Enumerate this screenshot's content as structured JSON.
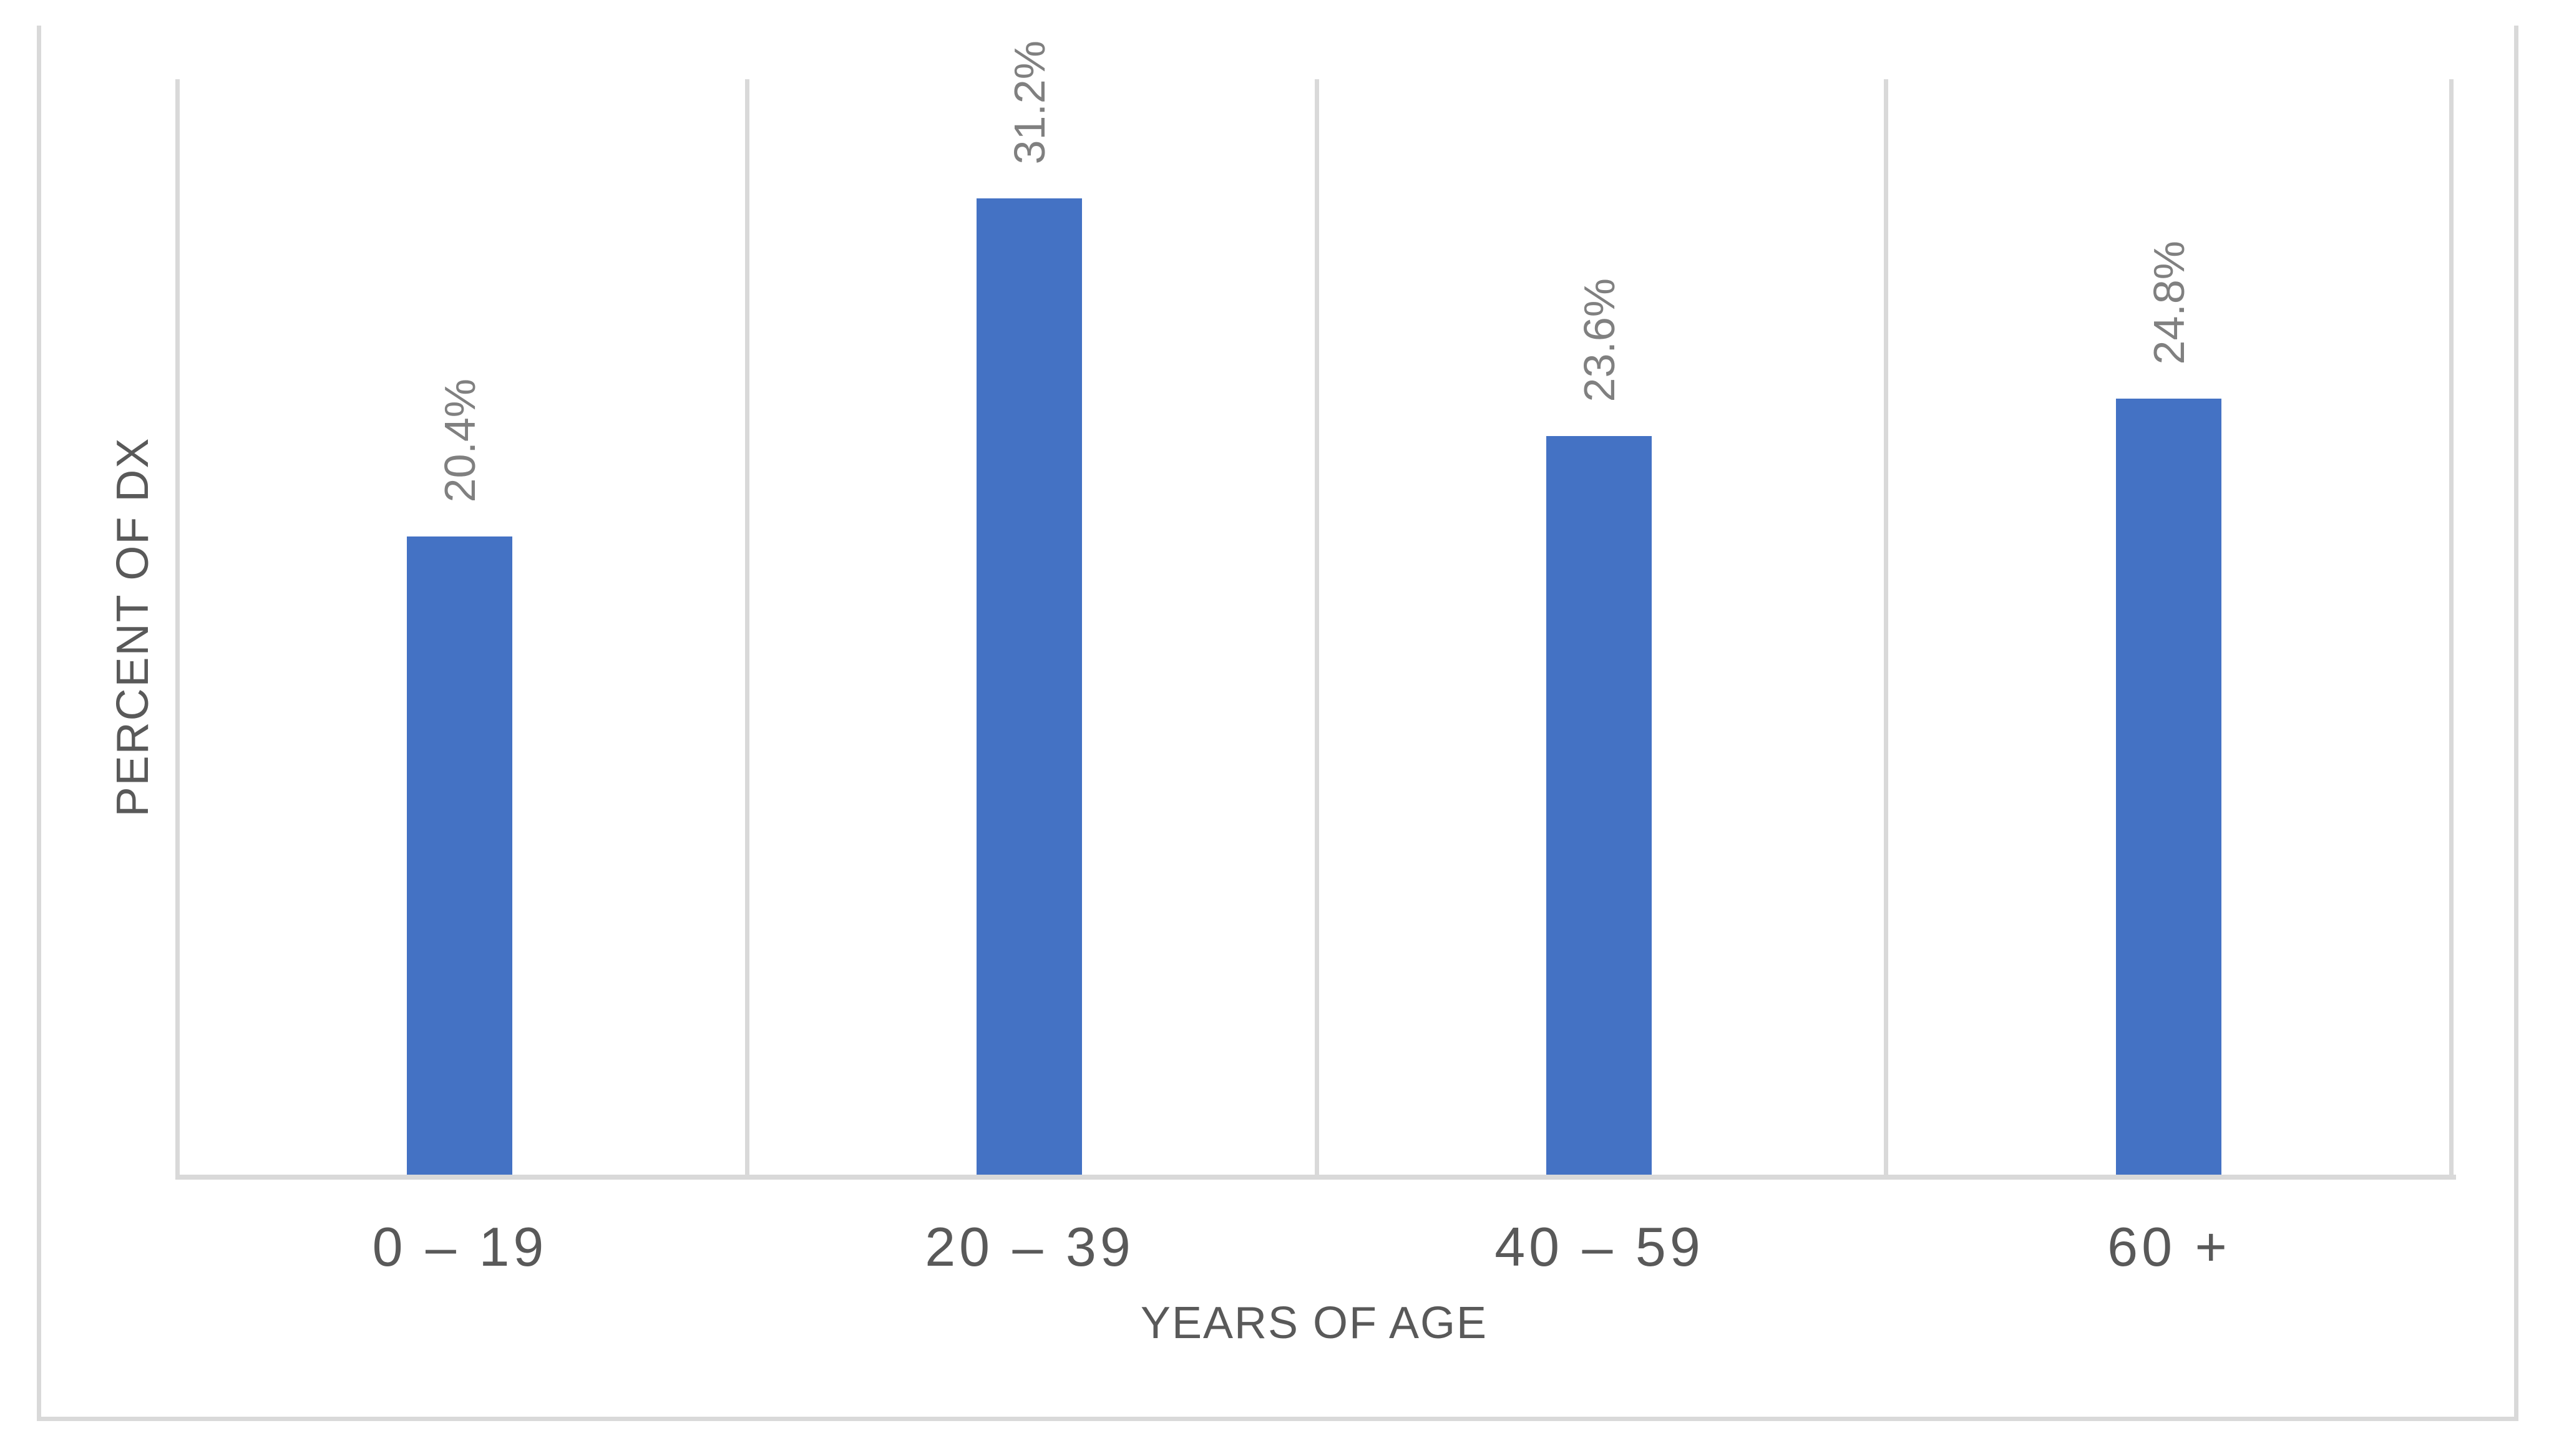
{
  "chart_data": {
    "type": "bar",
    "categories": [
      "0 – 19",
      "20 – 39",
      "40 – 59",
      "60 +"
    ],
    "values": [
      20.4,
      31.2,
      23.6,
      24.8
    ],
    "data_labels": [
      "20.4%",
      "31.2%",
      "23.6%",
      "24.8%"
    ],
    "title": "",
    "xlabel": "YEARS OF AGE",
    "ylabel": "PERCENT OF DX",
    "ylim": [
      0,
      35
    ],
    "grid": "vertical-category-gridlines",
    "legend_position": "none",
    "colors": {
      "bar": "#4472C4",
      "gridline": "#D9D9D9",
      "axis_line": "#D9D9D9",
      "figure_border": "#D9D9D9",
      "data_label_text": "#808080",
      "axis_text": "#595959",
      "background": "#FFFFFF"
    }
  }
}
